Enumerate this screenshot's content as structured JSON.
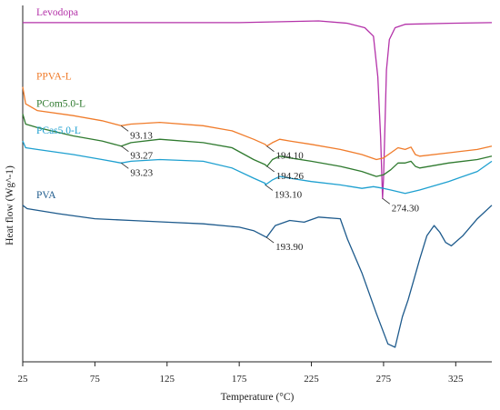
{
  "chart_data": {
    "type": "line",
    "xlabel": "Temperature (°C)",
    "ylabel": "Heat flow (Wg^-1)",
    "xlim": [
      25,
      350
    ],
    "xticks": [
      25,
      75,
      125,
      175,
      225,
      275,
      325
    ],
    "grid": false,
    "legend": "inline labels beside each curve",
    "series": [
      {
        "name": "Levodopa",
        "color": "#b432a9",
        "points": [
          [
            25,
            0.96
          ],
          [
            100,
            0.96
          ],
          [
            175,
            0.96
          ],
          [
            230,
            0.965
          ],
          [
            250,
            0.958
          ],
          [
            262,
            0.945
          ],
          [
            268,
            0.92
          ],
          [
            271,
            0.8
          ],
          [
            273,
            0.62
          ],
          [
            274.3,
            0.44
          ],
          [
            275,
            0.5
          ],
          [
            277,
            0.82
          ],
          [
            279,
            0.91
          ],
          [
            283,
            0.945
          ],
          [
            290,
            0.955
          ],
          [
            320,
            0.958
          ],
          [
            350,
            0.96
          ]
        ]
      },
      {
        "name": "PPVA-L",
        "color": "#f07c2b",
        "points": [
          [
            25,
            0.77
          ],
          [
            27,
            0.72
          ],
          [
            35,
            0.7
          ],
          [
            60,
            0.685
          ],
          [
            80,
            0.67
          ],
          [
            93.13,
            0.655
          ],
          [
            100,
            0.66
          ],
          [
            120,
            0.665
          ],
          [
            150,
            0.655
          ],
          [
            170,
            0.64
          ],
          [
            185,
            0.615
          ],
          [
            193,
            0.6
          ],
          [
            194.1,
            0.595
          ],
          [
            198,
            0.605
          ],
          [
            203,
            0.615
          ],
          [
            210,
            0.61
          ],
          [
            225,
            0.6
          ],
          [
            245,
            0.585
          ],
          [
            260,
            0.57
          ],
          [
            270,
            0.555
          ],
          [
            275,
            0.56
          ],
          [
            280,
            0.575
          ],
          [
            285,
            0.59
          ],
          [
            290,
            0.585
          ],
          [
            294,
            0.592
          ],
          [
            297,
            0.57
          ],
          [
            300,
            0.565
          ],
          [
            320,
            0.575
          ],
          [
            340,
            0.585
          ],
          [
            350,
            0.595
          ]
        ]
      },
      {
        "name": "PCom5.0-L",
        "color": "#2f7a2f",
        "points": [
          [
            25,
            0.69
          ],
          [
            27,
            0.66
          ],
          [
            35,
            0.65
          ],
          [
            60,
            0.625
          ],
          [
            80,
            0.61
          ],
          [
            93.27,
            0.595
          ],
          [
            100,
            0.605
          ],
          [
            120,
            0.615
          ],
          [
            150,
            0.605
          ],
          [
            170,
            0.59
          ],
          [
            185,
            0.555
          ],
          [
            193,
            0.54
          ],
          [
            194.26,
            0.535
          ],
          [
            198,
            0.555
          ],
          [
            203,
            0.565
          ],
          [
            210,
            0.56
          ],
          [
            225,
            0.55
          ],
          [
            245,
            0.535
          ],
          [
            260,
            0.52
          ],
          [
            270,
            0.505
          ],
          [
            275,
            0.51
          ],
          [
            280,
            0.525
          ],
          [
            285,
            0.545
          ],
          [
            290,
            0.545
          ],
          [
            294,
            0.55
          ],
          [
            297,
            0.535
          ],
          [
            300,
            0.53
          ],
          [
            320,
            0.545
          ],
          [
            340,
            0.555
          ],
          [
            350,
            0.565
          ]
        ]
      },
      {
        "name": "PCas5.0-L",
        "color": "#1ea0d0",
        "points": [
          [
            25,
            0.61
          ],
          [
            27,
            0.59
          ],
          [
            35,
            0.585
          ],
          [
            60,
            0.57
          ],
          [
            80,
            0.555
          ],
          [
            93.23,
            0.545
          ],
          [
            100,
            0.55
          ],
          [
            120,
            0.555
          ],
          [
            150,
            0.55
          ],
          [
            170,
            0.53
          ],
          [
            185,
            0.5
          ],
          [
            193,
            0.485
          ],
          [
            193.1,
            0.48
          ],
          [
            198,
            0.495
          ],
          [
            203,
            0.505
          ],
          [
            210,
            0.5
          ],
          [
            225,
            0.49
          ],
          [
            245,
            0.48
          ],
          [
            260,
            0.47
          ],
          [
            268,
            0.475
          ],
          [
            275,
            0.47
          ],
          [
            280,
            0.465
          ],
          [
            290,
            0.455
          ],
          [
            300,
            0.465
          ],
          [
            320,
            0.49
          ],
          [
            340,
            0.52
          ],
          [
            350,
            0.55
          ]
        ]
      },
      {
        "name": "PVA",
        "color": "#1d5a8c",
        "points": [
          [
            25,
            0.42
          ],
          [
            28,
            0.41
          ],
          [
            50,
            0.395
          ],
          [
            75,
            0.38
          ],
          [
            100,
            0.375
          ],
          [
            125,
            0.37
          ],
          [
            150,
            0.365
          ],
          [
            175,
            0.355
          ],
          [
            185,
            0.345
          ],
          [
            193.9,
            0.325
          ],
          [
            200,
            0.36
          ],
          [
            210,
            0.375
          ],
          [
            220,
            0.37
          ],
          [
            230,
            0.385
          ],
          [
            245,
            0.38
          ],
          [
            250,
            0.32
          ],
          [
            260,
            0.22
          ],
          [
            270,
            0.1
          ],
          [
            278,
            0.01
          ],
          [
            283,
            0.0
          ],
          [
            288,
            0.09
          ],
          [
            292,
            0.14
          ],
          [
            296,
            0.2
          ],
          [
            300,
            0.26
          ],
          [
            305,
            0.33
          ],
          [
            310,
            0.36
          ],
          [
            314,
            0.34
          ],
          [
            318,
            0.31
          ],
          [
            322,
            0.3
          ],
          [
            330,
            0.33
          ],
          [
            340,
            0.38
          ],
          [
            350,
            0.42
          ]
        ]
      }
    ],
    "annotations": [
      {
        "text": "274.30",
        "series": "Levodopa",
        "x": 274.3
      },
      {
        "text": "93.13",
        "series": "PPVA-L",
        "x": 93.13
      },
      {
        "text": "194.10",
        "series": "PPVA-L",
        "x": 194.1
      },
      {
        "text": "93.27",
        "series": "PCom5.0-L",
        "x": 93.27
      },
      {
        "text": "194.26",
        "series": "PCom5.0-L",
        "x": 194.26
      },
      {
        "text": "93.23",
        "series": "PCas5.0-L",
        "x": 93.23
      },
      {
        "text": "193.10",
        "series": "PCas5.0-L",
        "x": 193.1
      },
      {
        "text": "193.90",
        "series": "PVA",
        "x": 193.9
      }
    ]
  }
}
